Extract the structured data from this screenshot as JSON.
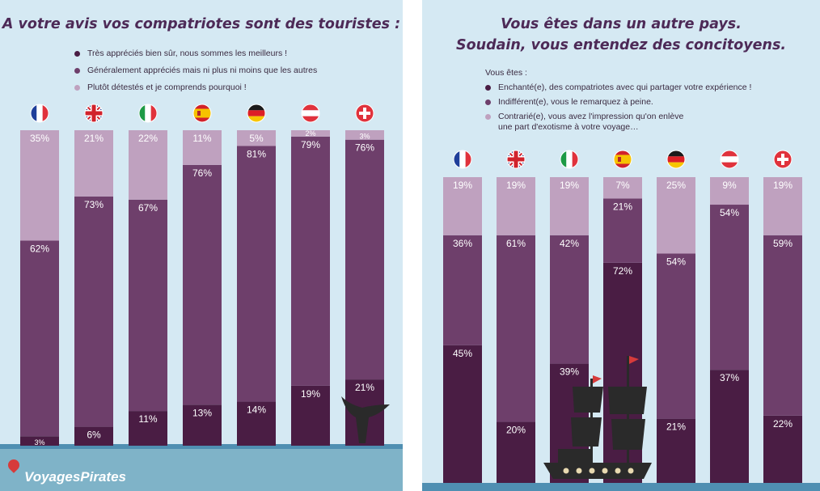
{
  "left": {
    "title": "A votre avis vos compatriotes sont des touristes :",
    "legend": [
      {
        "label": "Très appréciés bien sûr, nous sommes les meilleurs !",
        "color": "#4a1d44"
      },
      {
        "label": "Généralement appréciés mais ni plus ni moins que les autres",
        "color": "#6e3f6b"
      },
      {
        "label": "Plutôt détestés et je comprends pourquoi !",
        "color": "#bfa1bf"
      }
    ]
  },
  "right": {
    "title_line1": "Vous êtes dans un autre pays.",
    "title_line2": "Soudain, vous entendez des concitoyens.",
    "intro": "Vous êtes :",
    "legend": [
      {
        "label": "Enchanté(e), des compatriotes avec qui partager votre expérience !",
        "color": "#4a1d44"
      },
      {
        "label": "Indifférent(e), vous le remarquez à peine.",
        "color": "#6e3f6b"
      },
      {
        "label": "Contrarié(e), vous avez l'impression qu'on enlève une part d'exotisme à votre voyage…",
        "color": "#bfa1bf"
      }
    ]
  },
  "brand": "VoyagesPirates",
  "chart_data": [
    {
      "type": "bar",
      "stacked": true,
      "title": "A votre avis vos compatriotes sont des touristes :",
      "categories": [
        "france-flag",
        "uk-flag",
        "italy-flag",
        "spain-flag",
        "germany-flag",
        "austria-flag",
        "switzerland-flag"
      ],
      "series": [
        {
          "name": "Très appréciés bien sûr, nous sommes les meilleurs !",
          "values": [
            3,
            6,
            11,
            13,
            14,
            19,
            21
          ],
          "color": "#4a1d44"
        },
        {
          "name": "Généralement appréciés mais ni plus ni moins que les autres",
          "values": [
            62,
            73,
            67,
            76,
            81,
            79,
            76
          ],
          "color": "#6e3f6b"
        },
        {
          "name": "Plutôt détestés et je comprends pourquoi !",
          "values": [
            35,
            21,
            22,
            11,
            5,
            2,
            3
          ],
          "color": "#bfa1bf"
        }
      ],
      "labels": [
        [
          "3%",
          "6%",
          "11%",
          "13%",
          "14%",
          "19%",
          "21%"
        ],
        [
          "62%",
          "73%",
          "67%",
          "76%",
          "81%",
          "79%",
          "76%"
        ],
        [
          "35%",
          "21%",
          "22%",
          "11%",
          "5%",
          "2%",
          "3%"
        ]
      ],
      "ylim": [
        0,
        100
      ]
    },
    {
      "type": "bar",
      "stacked": true,
      "title": "Vous êtes dans un autre pays. Soudain, vous entendez des concitoyens.",
      "categories": [
        "france-flag",
        "uk-flag",
        "italy-flag",
        "spain-flag",
        "germany-flag",
        "austria-flag",
        "switzerland-flag"
      ],
      "series": [
        {
          "name": "Enchanté(e), des compatriotes avec qui partager votre expérience !",
          "values": [
            45,
            20,
            39,
            72,
            21,
            37,
            22
          ],
          "color": "#4a1d44"
        },
        {
          "name": "Indifférent(e), vous le remarquez à peine.",
          "values": [
            36,
            61,
            42,
            21,
            54,
            54,
            59
          ],
          "color": "#6e3f6b"
        },
        {
          "name": "Contrarié(e), vous avez l'impression qu'on enlève une part d'exotisme à votre voyage…",
          "values": [
            19,
            19,
            19,
            7,
            25,
            9,
            19
          ],
          "color": "#bfa1bf"
        }
      ],
      "labels": [
        [
          "45%",
          "20%",
          "39%",
          "72%",
          "21%",
          "37%",
          "22%"
        ],
        [
          "36%",
          "61%",
          "42%",
          "21%",
          "54%",
          "54%",
          "59%"
        ],
        [
          "19%",
          "19%",
          "19%",
          "7%",
          "25%",
          "9%",
          "19%"
        ]
      ],
      "ylim": [
        0,
        100
      ]
    }
  ]
}
